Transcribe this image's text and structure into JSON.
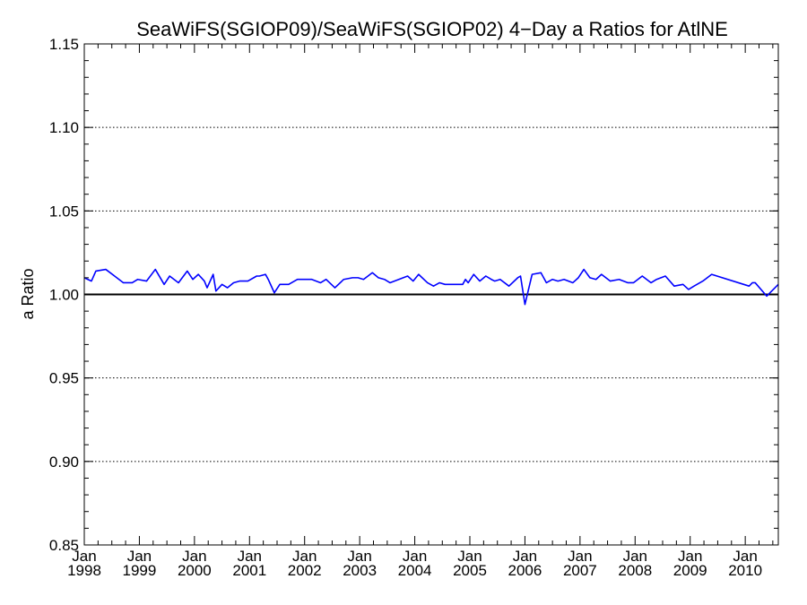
{
  "chart_data": {
    "type": "line",
    "title": "SeaWiFS(SGIOP09)/SeaWiFS(SGIOP02) 4−Day a Ratios for AtlNE",
    "xlabel": "",
    "ylabel": "a Ratio",
    "ylim": [
      0.85,
      1.15
    ],
    "xlim": [
      1998.0,
      2010.6
    ],
    "y_ticks": [
      "0.85",
      "0.90",
      "0.95",
      "1.00",
      "1.05",
      "1.10",
      "1.15"
    ],
    "x_ticks": [
      {
        "line1": "Jan",
        "line2": "1998"
      },
      {
        "line1": "Jan",
        "line2": "1999"
      },
      {
        "line1": "Jan",
        "line2": "2000"
      },
      {
        "line1": "Jan",
        "line2": "2001"
      },
      {
        "line1": "Jan",
        "line2": "2002"
      },
      {
        "line1": "Jan",
        "line2": "2003"
      },
      {
        "line1": "Jan",
        "line2": "2004"
      },
      {
        "line1": "Jan",
        "line2": "2005"
      },
      {
        "line1": "Jan",
        "line2": "2006"
      },
      {
        "line1": "Jan",
        "line2": "2007"
      },
      {
        "line1": "Jan",
        "line2": "2008"
      },
      {
        "line1": "Jan",
        "line2": "2009"
      },
      {
        "line1": "Jan",
        "line2": "2010"
      }
    ],
    "reference_line": 1.0,
    "grid": "dotted horizontal at major y ticks",
    "series": [
      {
        "color": "#0000ff",
        "x": [
          1998.0,
          1998.13,
          1998.21,
          1998.39,
          1998.55,
          1998.71,
          1998.87,
          1998.97,
          1999.13,
          1999.29,
          1999.45,
          1999.55,
          1999.71,
          1999.87,
          1999.97,
          2000.07,
          2000.18,
          2000.23,
          2000.34,
          2000.39,
          2000.5,
          2000.6,
          2000.71,
          2000.82,
          2000.97,
          2001.13,
          2001.18,
          2001.29,
          2001.34,
          2001.45,
          2001.55,
          2001.71,
          2001.87,
          2001.97,
          2002.13,
          2002.29,
          2002.39,
          2002.55,
          2002.71,
          2002.87,
          2002.97,
          2003.07,
          2003.23,
          2003.34,
          2003.45,
          2003.55,
          2003.71,
          2003.87,
          2003.97,
          2004.07,
          2004.23,
          2004.34,
          2004.45,
          2004.55,
          2004.71,
          2004.87,
          2004.92,
          2004.97,
          2005.07,
          2005.18,
          2005.29,
          2005.39,
          2005.45,
          2005.55,
          2005.71,
          2005.87,
          2005.92,
          2006.0,
          2006.13,
          2006.29,
          2006.39,
          2006.5,
          2006.6,
          2006.71,
          2006.87,
          2006.97,
          2007.07,
          2007.18,
          2007.29,
          2007.39,
          2007.55,
          2007.71,
          2007.87,
          2007.97,
          2008.13,
          2008.29,
          2008.39,
          2008.55,
          2008.71,
          2008.87,
          2008.97,
          2009.07,
          2009.23,
          2009.39,
          2010.07,
          2010.13,
          2010.18,
          2010.39,
          2010.6
        ],
        "y": [
          1.01,
          1.008,
          1.014,
          1.015,
          1.011,
          1.007,
          1.007,
          1.009,
          1.008,
          1.015,
          1.006,
          1.011,
          1.007,
          1.014,
          1.009,
          1.012,
          1.008,
          1.004,
          1.012,
          1.002,
          1.006,
          1.004,
          1.007,
          1.008,
          1.008,
          1.011,
          1.011,
          1.012,
          1.009,
          1.001,
          1.006,
          1.006,
          1.009,
          1.009,
          1.009,
          1.007,
          1.009,
          1.004,
          1.009,
          1.01,
          1.01,
          1.009,
          1.013,
          1.01,
          1.009,
          1.007,
          1.009,
          1.011,
          1.008,
          1.012,
          1.007,
          1.005,
          1.007,
          1.006,
          1.006,
          1.006,
          1.009,
          1.007,
          1.012,
          1.008,
          1.011,
          1.009,
          1.008,
          1.009,
          1.005,
          1.01,
          1.011,
          0.994,
          1.012,
          1.013,
          1.007,
          1.009,
          1.008,
          1.009,
          1.007,
          1.01,
          1.015,
          1.01,
          1.009,
          1.012,
          1.008,
          1.009,
          1.007,
          1.007,
          1.011,
          1.007,
          1.009,
          1.011,
          1.005,
          1.006,
          1.003,
          1.005,
          1.008,
          1.012,
          1.005,
          1.007,
          1.007,
          0.999,
          1.006
        ]
      }
    ]
  }
}
